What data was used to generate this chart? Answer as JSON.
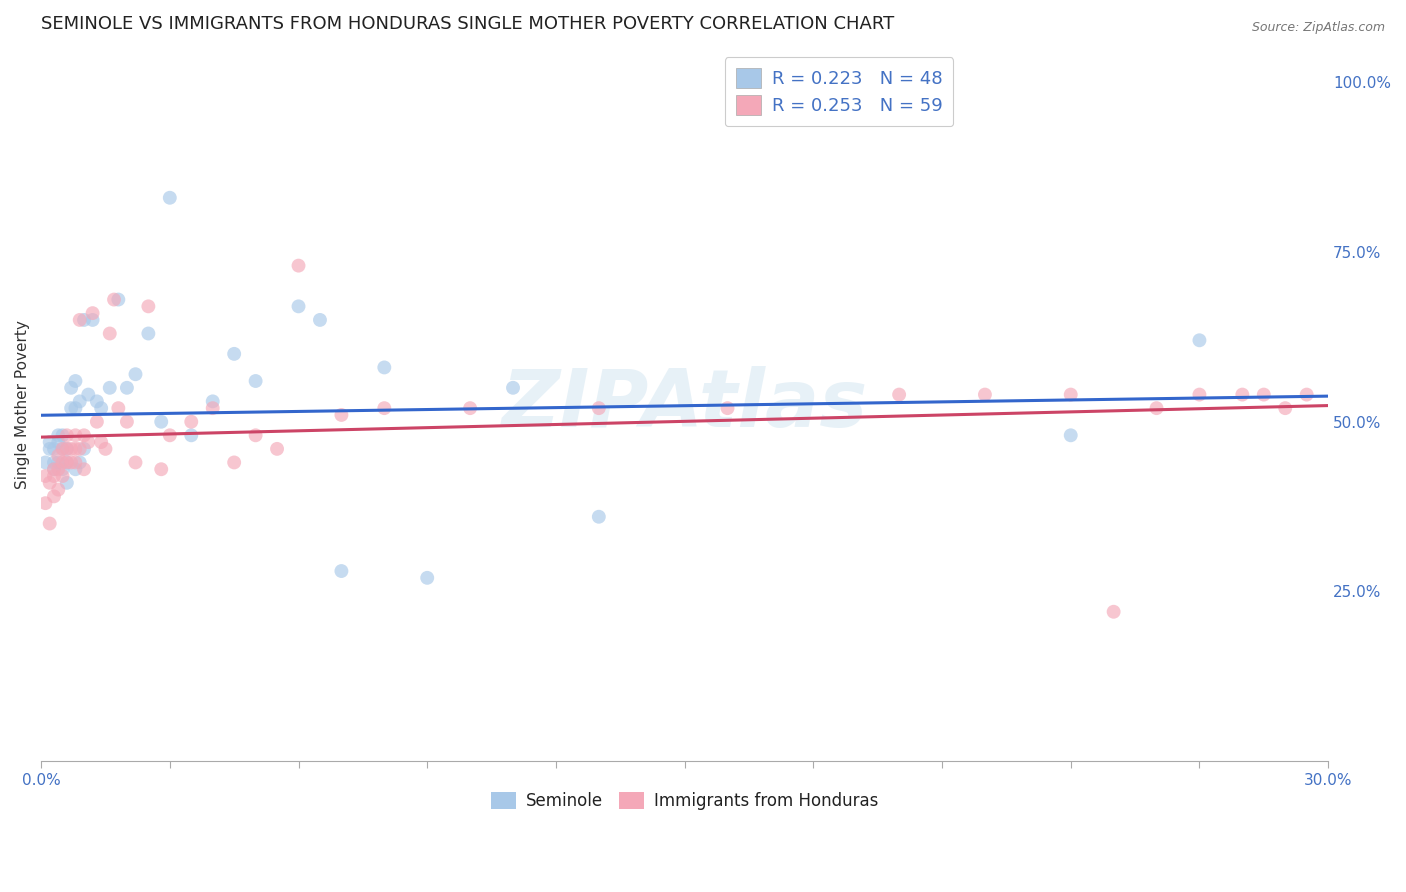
{
  "title": "SEMINOLE VS IMMIGRANTS FROM HONDURAS SINGLE MOTHER POVERTY CORRELATION CHART",
  "source": "Source: ZipAtlas.com",
  "ylabel": "Single Mother Poverty",
  "right_ytick_vals": [
    0.25,
    0.5,
    0.75,
    1.0
  ],
  "right_ytick_labels": [
    "25.0%",
    "50.0%",
    "75.0%",
    "100.0%"
  ],
  "seminole_color": "#a8c8e8",
  "honduras_color": "#f4a8b8",
  "trend_seminole_color": "#3366cc",
  "trend_honduras_color": "#cc4466",
  "background_color": "#ffffff",
  "grid_color": "#cccccc",
  "legend_text_color": "#4472c4",
  "seminole_x": [
    0.001,
    0.002,
    0.002,
    0.003,
    0.003,
    0.003,
    0.004,
    0.004,
    0.004,
    0.005,
    0.005,
    0.005,
    0.006,
    0.006,
    0.006,
    0.007,
    0.007,
    0.008,
    0.008,
    0.008,
    0.009,
    0.009,
    0.01,
    0.01,
    0.011,
    0.012,
    0.013,
    0.014,
    0.016,
    0.018,
    0.02,
    0.022,
    0.025,
    0.028,
    0.03,
    0.035,
    0.04,
    0.045,
    0.05,
    0.06,
    0.065,
    0.07,
    0.08,
    0.09,
    0.11,
    0.13,
    0.24,
    0.27
  ],
  "seminole_y": [
    0.44,
    0.46,
    0.47,
    0.43,
    0.44,
    0.46,
    0.44,
    0.47,
    0.48,
    0.43,
    0.46,
    0.48,
    0.41,
    0.44,
    0.46,
    0.52,
    0.55,
    0.43,
    0.52,
    0.56,
    0.44,
    0.53,
    0.46,
    0.65,
    0.54,
    0.65,
    0.53,
    0.52,
    0.55,
    0.68,
    0.55,
    0.57,
    0.63,
    0.5,
    0.83,
    0.48,
    0.53,
    0.6,
    0.56,
    0.67,
    0.65,
    0.28,
    0.58,
    0.27,
    0.55,
    0.36,
    0.48,
    0.62
  ],
  "honduras_x": [
    0.001,
    0.001,
    0.002,
    0.002,
    0.003,
    0.003,
    0.003,
    0.004,
    0.004,
    0.004,
    0.005,
    0.005,
    0.005,
    0.006,
    0.006,
    0.006,
    0.007,
    0.007,
    0.008,
    0.008,
    0.008,
    0.009,
    0.009,
    0.01,
    0.01,
    0.011,
    0.012,
    0.013,
    0.014,
    0.015,
    0.016,
    0.017,
    0.018,
    0.02,
    0.022,
    0.025,
    0.028,
    0.03,
    0.035,
    0.04,
    0.045,
    0.05,
    0.055,
    0.06,
    0.07,
    0.08,
    0.1,
    0.13,
    0.16,
    0.2,
    0.22,
    0.24,
    0.25,
    0.26,
    0.27,
    0.28,
    0.285,
    0.29,
    0.295
  ],
  "honduras_y": [
    0.38,
    0.42,
    0.35,
    0.41,
    0.39,
    0.42,
    0.43,
    0.4,
    0.43,
    0.45,
    0.42,
    0.44,
    0.46,
    0.44,
    0.46,
    0.48,
    0.44,
    0.46,
    0.44,
    0.46,
    0.48,
    0.65,
    0.46,
    0.48,
    0.43,
    0.47,
    0.66,
    0.5,
    0.47,
    0.46,
    0.63,
    0.68,
    0.52,
    0.5,
    0.44,
    0.67,
    0.43,
    0.48,
    0.5,
    0.52,
    0.44,
    0.48,
    0.46,
    0.73,
    0.51,
    0.52,
    0.52,
    0.52,
    0.52,
    0.54,
    0.54,
    0.54,
    0.22,
    0.52,
    0.54,
    0.54,
    0.54,
    0.52,
    0.54
  ],
  "xlim": [
    0.0,
    0.3
  ],
  "ylim": [
    0.0,
    1.05
  ],
  "marker_size": 100,
  "marker_alpha": 0.65,
  "watermark": "ZIPAtlas"
}
